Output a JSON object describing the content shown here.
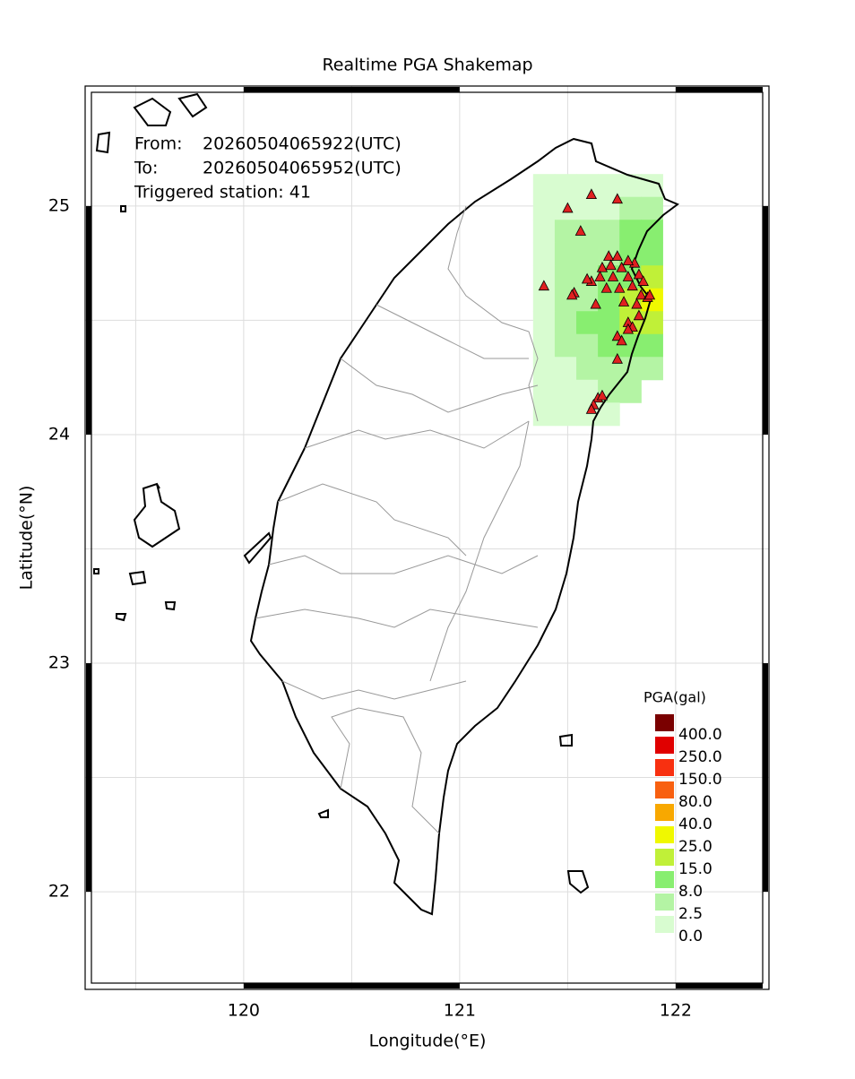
{
  "chart_data": {
    "type": "map",
    "title": "Realtime PGA Shakemap",
    "info": {
      "from_label": "From:",
      "from": "20260504065922(UTC)",
      "to_label": "To:",
      "to": "20260504065952(UTC)",
      "triggered": "Triggered station: 41"
    },
    "xlabel": "Longitude(°E)",
    "ylabel": "Latitude(°N)",
    "xlim": [
      119.266,
      122.432
    ],
    "ylim": [
      21.573,
      25.525
    ],
    "xticks": [
      120,
      121,
      122
    ],
    "yticks": [
      22,
      23,
      24,
      25
    ],
    "xgrid": [
      119.5,
      120,
      120.5,
      121,
      121.5,
      122
    ],
    "ygrid": [
      22,
      22.5,
      23,
      23.5,
      24,
      24.5,
      25
    ],
    "grid": true,
    "legend": {
      "title": "PGA(gal)",
      "items": [
        {
          "value": 400,
          "label": "400.0",
          "color": "#7a0000"
        },
        {
          "value": 250,
          "label": "250.0",
          "color": "#e00000"
        },
        {
          "value": 150,
          "label": "150.0",
          "color": "#f83010"
        },
        {
          "value": 80,
          "label": "80.0",
          "color": "#f86010"
        },
        {
          "value": 40,
          "label": "40.0",
          "color": "#f8a800"
        },
        {
          "value": 25,
          "label": "25.0",
          "color": "#f0f800"
        },
        {
          "value": 15,
          "label": "15.0",
          "color": "#c0f038"
        },
        {
          "value": 8,
          "label": "8.0",
          "color": "#88ee70"
        },
        {
          "value": 2.5,
          "label": "2.5",
          "color": "#b4f4a4"
        },
        {
          "value": 0,
          "label": "0.0",
          "color": "#d8fcd0"
        }
      ]
    },
    "grid_cells": {
      "lons": [
        121.39,
        121.49,
        121.59,
        121.69,
        121.79,
        121.89
      ],
      "lats": [
        25.09,
        24.99,
        24.89,
        24.79,
        24.69,
        24.59,
        24.49,
        24.39,
        24.29,
        24.19,
        24.09
      ],
      "pga": [
        [
          1,
          1,
          1,
          1,
          2,
          2
        ],
        [
          1,
          1,
          2,
          2,
          3,
          3
        ],
        [
          2,
          3,
          3,
          5,
          9,
          9
        ],
        [
          2,
          3,
          5,
          6,
          10,
          12
        ],
        [
          2,
          3,
          5,
          9,
          14,
          16
        ],
        [
          2,
          3,
          6,
          12,
          18,
          26
        ],
        [
          1,
          4,
          9,
          14,
          18,
          20
        ],
        [
          1,
          3,
          6,
          10,
          12,
          10
        ],
        [
          1,
          2,
          4,
          5,
          6,
          3
        ],
        [
          1,
          1,
          2,
          3,
          3,
          null
        ],
        [
          1,
          1,
          1,
          2,
          null,
          null
        ]
      ]
    },
    "stations": {
      "color": "#e02020",
      "lon": [
        121.5,
        121.61,
        121.73,
        121.56,
        121.39,
        121.53,
        121.52,
        121.69,
        121.73,
        121.81,
        121.66,
        121.7,
        121.75,
        121.65,
        121.61,
        121.71,
        121.78,
        121.83,
        121.68,
        121.74,
        121.8,
        121.84,
        121.87,
        121.63,
        121.76,
        121.82,
        121.78,
        121.83,
        121.73,
        121.8,
        121.78,
        121.75,
        121.73,
        121.64,
        121.62,
        121.61,
        121.66,
        121.88,
        121.85,
        121.59,
        121.78
      ],
      "lat": [
        24.99,
        25.05,
        25.03,
        24.89,
        24.65,
        24.62,
        24.61,
        24.78,
        24.78,
        24.75,
        24.73,
        24.74,
        24.73,
        24.69,
        24.67,
        24.69,
        24.69,
        24.7,
        24.64,
        24.64,
        24.65,
        24.61,
        24.6,
        24.57,
        24.58,
        24.57,
        24.49,
        24.52,
        24.43,
        24.47,
        24.46,
        24.41,
        24.33,
        24.16,
        24.13,
        24.11,
        24.17,
        24.61,
        24.67,
        24.68,
        24.76
      ]
    }
  }
}
